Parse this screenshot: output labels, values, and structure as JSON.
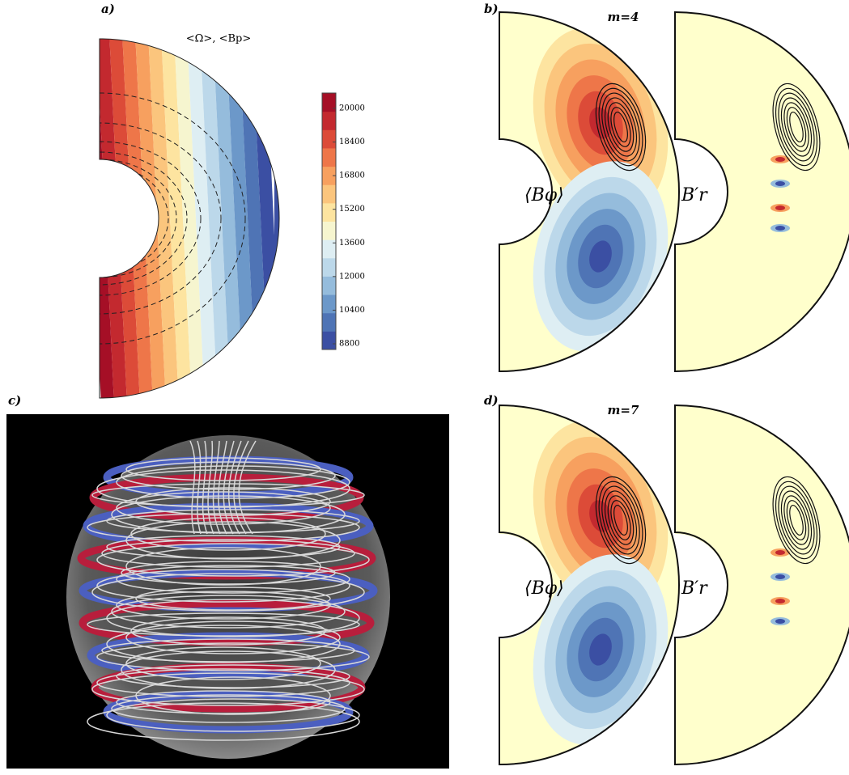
{
  "panels": [
    {
      "label": "a)",
      "title": "<Ω>, <Bp>",
      "colorbar": {
        "lim": [
          8530,
          20730
        ],
        "ticks": [
          8800,
          10400,
          12000,
          13600,
          15200,
          16800,
          18400,
          20000
        ]
      }
    },
    {
      "label": "b)",
      "title": "m=4",
      "left_label": "⟨Bφ⟩",
      "right_label": "B′r"
    },
    {
      "label": "c)"
    },
    {
      "label": "d)",
      "title": "m=7",
      "left_label": "⟨Bφ⟩",
      "right_label": "B′r"
    }
  ]
}
